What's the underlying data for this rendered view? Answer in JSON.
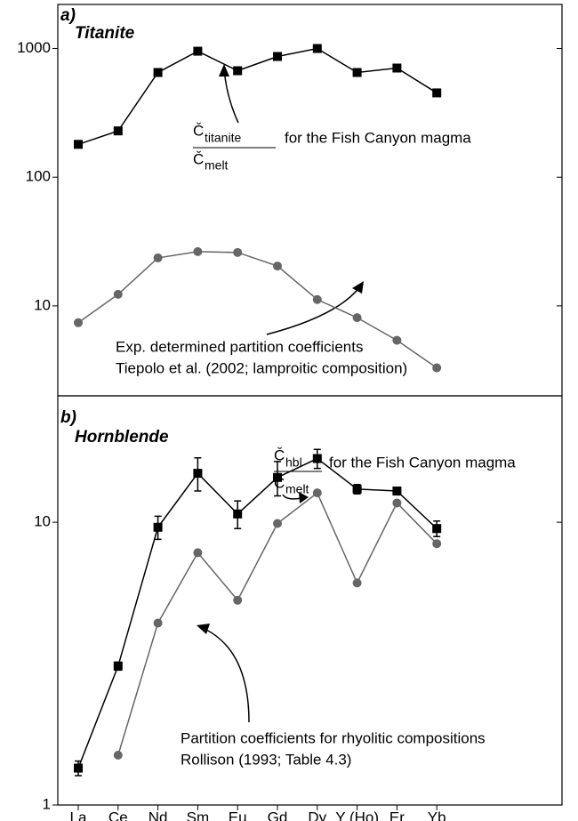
{
  "chart_data": [
    {
      "type": "line",
      "panel_label": "a)",
      "title": "Titanite",
      "yscale": "log",
      "ylim": [
        2,
        2200
      ],
      "yticks": [
        10,
        100,
        1000
      ],
      "series": [
        {
          "name": "titanite",
          "marker": "square",
          "color": "#000000",
          "values": [
            180,
            229,
            651,
            953,
            672,
            867,
            1000,
            651,
            705,
            452
          ]
        },
        {
          "name": "exp",
          "marker": "circle",
          "color": "#666666",
          "values": [
            7.4,
            12.3,
            23.6,
            26.4,
            26,
            20.4,
            11.2,
            8.1,
            5.4,
            3.3
          ]
        }
      ],
      "annotations": [
        "Č",
        "titanite",
        "Č",
        "melt",
        "for the Fish Canyon magma",
        "Exp. determined partition coefficients",
        "Tiepolo et al. (2002; lamproitic composition)"
      ]
    },
    {
      "type": "line",
      "panel_label": "b)",
      "title": "Hornblende",
      "yscale": "log",
      "ylim": [
        1,
        28
      ],
      "yticks": [
        1,
        10
      ],
      "categories": [
        "La",
        "Ce",
        "Nd",
        "Sm",
        "Eu",
        "Gd",
        "Dy",
        "Y (Ho)",
        "Er",
        "Yb"
      ],
      "series": [
        {
          "name": "hbl",
          "marker": "square",
          "color": "#000000",
          "values": [
            1.35,
            3.1,
            9.6,
            14.9,
            10.7,
            14.4,
            16.8,
            13.1,
            12.9,
            9.5
          ],
          "errors": [
            0.08,
            0.1,
            0.9,
            2,
            1.2,
            2,
            1.3,
            0.5,
            0.4,
            0.6
          ]
        },
        {
          "name": "rhyolitic",
          "marker": "circle",
          "color": "#666666",
          "values": [
            null,
            1.5,
            4.4,
            7.8,
            5.3,
            9.9,
            12.7,
            6.1,
            11.7,
            8.4
          ]
        }
      ],
      "annotations": [
        "Č",
        "hbl",
        "Č",
        "melt",
        "for the Fish Canyon magma",
        "Partition coefficients for rhyolitic compositions",
        "Rollison (1993; Table 4.3)"
      ]
    }
  ]
}
